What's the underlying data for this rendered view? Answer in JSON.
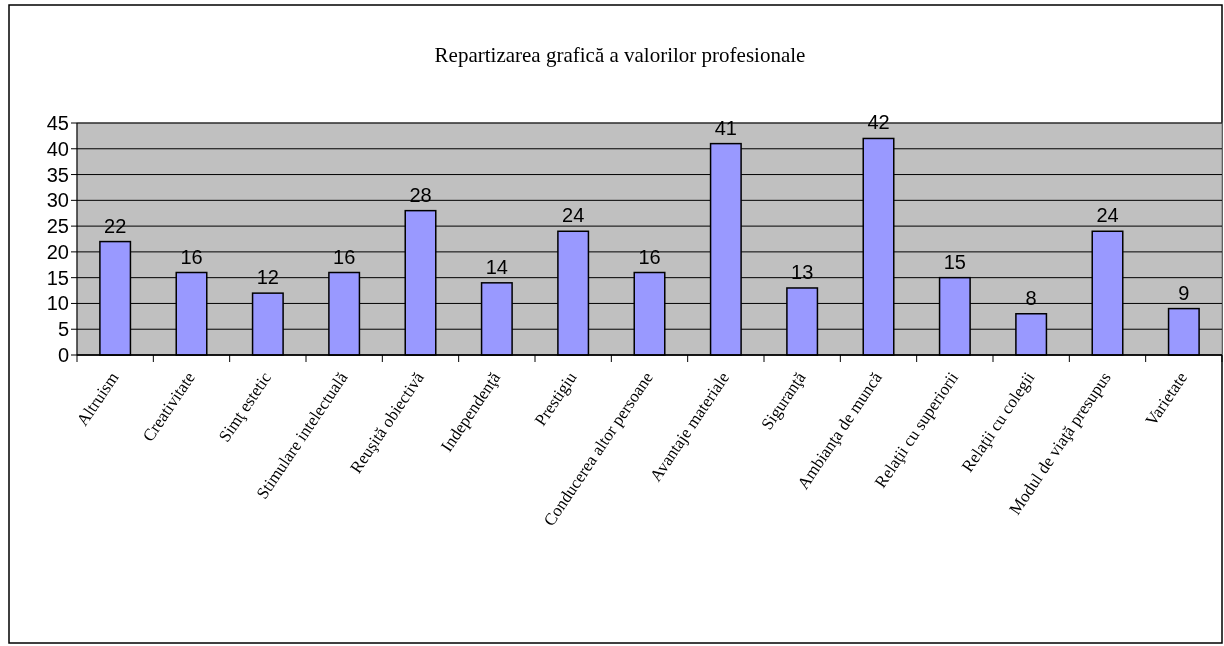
{
  "chart_data": {
    "type": "bar",
    "title": "Repartizarea grafică a valorilor profesionale",
    "categories": [
      "Altruism",
      "Creativitate",
      "Simţ estetic",
      "Stimulare intelectuală",
      "Reuşită obiectivă",
      "Independenţă",
      "Prestigiu",
      "Conducerea altor persoane",
      "Avantaje materiale",
      "Siguranţă",
      "Ambianţa de muncă",
      "Relaţii cu superiorii",
      "Relaţii cu colegii",
      "Modul de viaţă presupus",
      "Varietate"
    ],
    "values": [
      22,
      16,
      12,
      16,
      28,
      14,
      24,
      16,
      41,
      13,
      42,
      15,
      8,
      24,
      9
    ],
    "color": "#9999ff",
    "ylim": [
      0,
      45
    ],
    "yticks": [
      0,
      5,
      10,
      15,
      20,
      25,
      30,
      35,
      40,
      45
    ],
    "grid": "y",
    "data_labels": true
  }
}
